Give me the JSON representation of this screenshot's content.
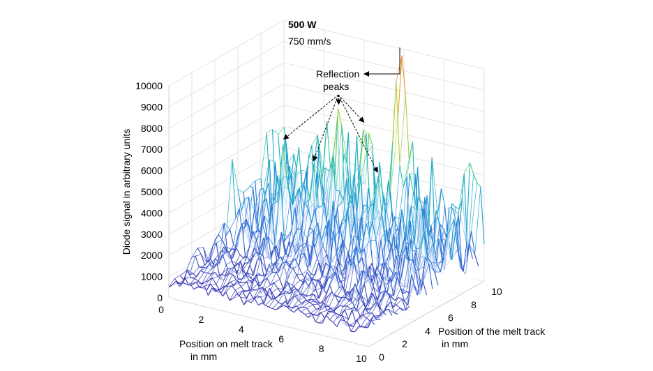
{
  "chart_data": {
    "type": "surface",
    "annotations": {
      "power": "500 W",
      "speed": "750 mm/s",
      "peaks_label_line1": "Reflection",
      "peaks_label_line2": "peaks"
    },
    "xlabel_line1": "Position on melt track",
    "xlabel_line2": "in mm",
    "ylabel_line1": "Position of the melt track",
    "ylabel_line2": "in mm",
    "zlabel": "Diode signal in arbitrary units",
    "xlim": [
      0,
      10
    ],
    "ylim": [
      0,
      10
    ],
    "zlim": [
      0,
      10000
    ],
    "x_ticks": [
      "0",
      "2",
      "4",
      "6",
      "8",
      "10"
    ],
    "y_ticks": [
      "0",
      "2",
      "4",
      "6",
      "8",
      "10"
    ],
    "z_ticks": [
      "0",
      "1000",
      "2000",
      "3000",
      "4000",
      "5000",
      "6000",
      "7000",
      "8000",
      "9000",
      "10000"
    ],
    "grid": true,
    "colormap": [
      "#3e26a8",
      "#2e6dd8",
      "#1aa6d3",
      "#2ec5a0",
      "#8bd14c",
      "#d6cc2e",
      "#f29a2a",
      "#e0401e"
    ],
    "baseline_signal": 1000,
    "typical_peak_signal": 5500,
    "reflection_peaks": [
      {
        "x": 2.0,
        "y": 6.5,
        "value": 5800
      },
      {
        "x": 3.2,
        "y": 7.0,
        "value": 4900
      },
      {
        "x": 3.6,
        "y": 8.5,
        "value": 7200
      },
      {
        "x": 4.8,
        "y": 8.6,
        "value": 6600
      },
      {
        "x": 6.4,
        "y": 7.0,
        "value": 5100
      },
      {
        "x": 5.9,
        "y": 9.8,
        "value": 10200
      }
    ]
  }
}
